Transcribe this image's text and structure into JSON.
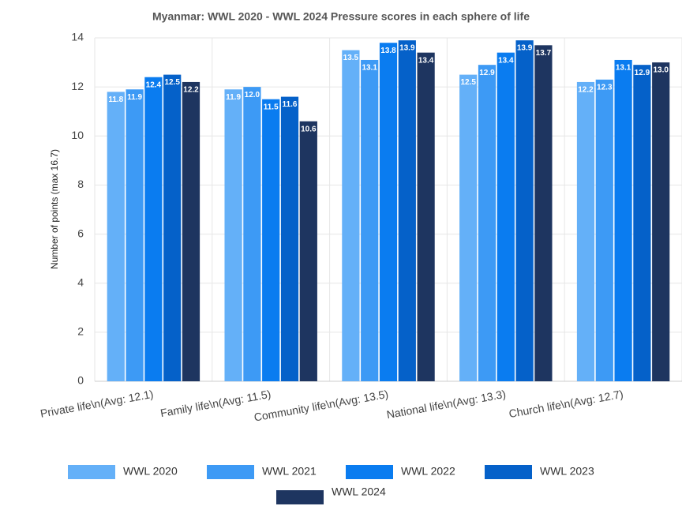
{
  "chart_data": {
    "type": "bar",
    "title": "Myanmar: WWL 2020 - WWL 2024 Pressure scores in each sphere of life",
    "ylabel": "Number of points (max 16.7)",
    "categories": [
      "Private life\\n(Avg: 12.1)",
      "Family life\\n(Avg: 11.5)",
      "Community life\\n(Avg: 13.5)",
      "National life\\n(Avg: 13.3)",
      "Church life\\n(Avg: 12.7)"
    ],
    "series": [
      {
        "name": "WWL 2020",
        "color": "#64b0f8",
        "values": [
          11.8,
          11.9,
          13.5,
          12.5,
          12.2
        ],
        "value_labels": [
          "11.8",
          "11.9",
          "13.5",
          "12.5",
          "12.2"
        ]
      },
      {
        "name": "WWL 2021",
        "color": "#3d9af5",
        "values": [
          11.9,
          12.0,
          13.1,
          12.9,
          12.3
        ],
        "value_labels": [
          "11.9",
          "12.0",
          "13.1",
          "12.9",
          "12.3"
        ]
      },
      {
        "name": "WWL 2022",
        "color": "#0a7cf0",
        "values": [
          12.4,
          11.5,
          13.8,
          13.4,
          13.1
        ],
        "value_labels": [
          "12.4",
          "11.5",
          "13.8",
          "13.4",
          "13.1"
        ]
      },
      {
        "name": "WWL 2023",
        "color": "#0561c9",
        "values": [
          12.5,
          11.6,
          13.9,
          13.9,
          12.9
        ],
        "value_labels": [
          "12.5",
          "11.6",
          "13.9",
          "13.9",
          "12.9"
        ]
      },
      {
        "name": "WWL 2024",
        "color": "#1e3560",
        "values": [
          12.2,
          10.6,
          13.4,
          13.7,
          13.0
        ],
        "value_labels": [
          "12.2",
          "10.6",
          "13.4",
          "13.7",
          "13.0"
        ]
      }
    ],
    "ylim": [
      0,
      14
    ],
    "yticks": [
      0,
      2,
      4,
      6,
      8,
      10,
      12,
      14
    ],
    "grid": true,
    "legend": "bottom"
  }
}
